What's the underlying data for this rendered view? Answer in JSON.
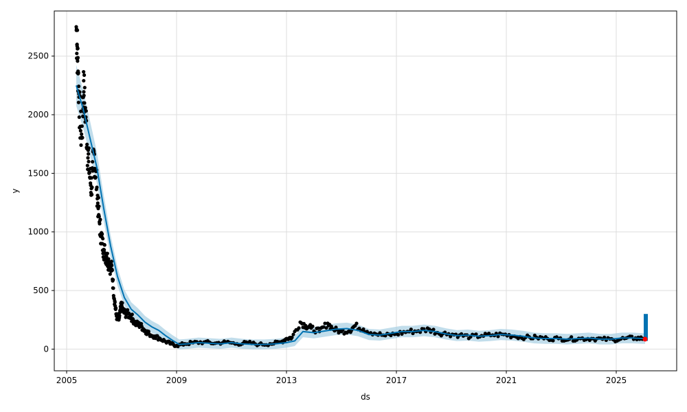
{
  "chart_data": {
    "type": "line",
    "title": "",
    "xlabel": "ds",
    "ylabel": "y",
    "xlim": [
      2004.55,
      2027.2
    ],
    "ylim": [
      -185,
      2885
    ],
    "x_ticks": [
      2005,
      2009,
      2013,
      2017,
      2021,
      2025
    ],
    "x_tick_labels": [
      "2005",
      "2009",
      "2013",
      "2017",
      "2021",
      "2025"
    ],
    "y_ticks": [
      0,
      500,
      1000,
      1500,
      2000,
      2500
    ],
    "y_tick_labels": [
      "0",
      "500",
      "1000",
      "1500",
      "2000",
      "2500"
    ],
    "grid": true,
    "colors": {
      "observed": "#000000",
      "forecast": "#0072B2",
      "interval": "#A6CEE3",
      "future_band": "#0072B2",
      "last_point": "#FF0000"
    },
    "series": [
      {
        "role": "forecast",
        "x": [
          2005.35,
          2005.6,
          2005.85,
          2006.1,
          2006.35,
          2006.6,
          2006.85,
          2007.1,
          2007.35,
          2007.6,
          2007.85,
          2008.1,
          2008.35,
          2008.6,
          2008.85,
          2009.1,
          2009.4,
          2009.8,
          2010.2,
          2010.6,
          2011.0,
          2011.4,
          2011.8,
          2012.2,
          2012.6,
          2013.0,
          2013.3,
          2013.6,
          2014.0,
          2014.4,
          2014.8,
          2015.2,
          2015.6,
          2016.0,
          2016.4,
          2016.8,
          2017.2,
          2017.6,
          2018.0,
          2018.4,
          2018.8,
          2019.2,
          2019.6,
          2020.0,
          2020.4,
          2020.8,
          2021.2,
          2021.6,
          2022.0,
          2022.4,
          2022.8,
          2023.2,
          2023.6,
          2024.0,
          2024.4,
          2024.8,
          2025.2,
          2025.6,
          2026.0,
          2026.05
        ],
        "y": [
          2250,
          2050,
          1800,
          1550,
          1200,
          880,
          620,
          440,
          340,
          290,
          230,
          190,
          160,
          115,
          75,
          40,
          45,
          55,
          50,
          45,
          55,
          45,
          40,
          40,
          45,
          55,
          70,
          150,
          140,
          155,
          170,
          175,
          160,
          125,
          120,
          135,
          150,
          150,
          160,
          150,
          130,
          115,
          120,
          110,
          115,
          125,
          120,
          110,
          95,
          90,
          90,
          85,
          90,
          95,
          85,
          85,
          95,
          95,
          90,
          90
        ]
      },
      {
        "role": "observed",
        "x": [
          2005.35,
          2005.38,
          2005.4,
          2005.42,
          2005.45,
          2005.5,
          2005.55,
          2005.6,
          2005.62,
          2005.65,
          2005.7,
          2005.75,
          2005.8,
          2005.85,
          2005.9,
          2005.95,
          2006.0,
          2006.05,
          2006.1,
          2006.15,
          2006.2,
          2006.25,
          2006.3,
          2006.35,
          2006.4,
          2006.45,
          2006.5,
          2006.55,
          2006.6,
          2006.65,
          2006.7,
          2006.75,
          2006.8,
          2006.85,
          2006.9,
          2006.95,
          2007.0,
          2007.05,
          2007.1,
          2007.2,
          2007.3,
          2007.4,
          2007.5,
          2007.6,
          2007.7,
          2007.8,
          2007.9,
          2008.0,
          2008.2,
          2008.4,
          2008.6,
          2008.8,
          2009.0,
          2009.3,
          2009.6,
          2010.0,
          2010.4,
          2010.8,
          2011.2,
          2011.6,
          2012.0,
          2012.4,
          2012.8,
          2013.0,
          2013.2,
          2013.5,
          2013.7,
          2013.9,
          2014.2,
          2014.5,
          2014.7,
          2015.0,
          2015.3,
          2015.5,
          2015.8,
          2016.2,
          2016.6,
          2017.0,
          2017.4,
          2017.8,
          2018.2,
          2018.5,
          2018.9,
          2019.3,
          2019.7,
          2020.1,
          2020.5,
          2020.9,
          2021.3,
          2021.7,
          2022.1,
          2022.5,
          2022.9,
          2023.3,
          2023.7,
          2024.1,
          2024.5,
          2024.9,
          2025.3,
          2025.7,
          2026.0
        ],
        "y": [
          2750,
          2600,
          2480,
          2350,
          2150,
          1900,
          1800,
          2050,
          2290,
          2100,
          1980,
          1720,
          1600,
          1460,
          1370,
          1520,
          1670,
          1520,
          1380,
          1200,
          1070,
          980,
          900,
          850,
          820,
          790,
          760,
          740,
          700,
          680,
          520,
          410,
          300,
          260,
          250,
          320,
          380,
          330,
          310,
          300,
          290,
          260,
          220,
          210,
          200,
          170,
          150,
          130,
          110,
          90,
          65,
          45,
          30,
          45,
          55,
          60,
          50,
          60,
          45,
          55,
          40,
          45,
          60,
          90,
          100,
          230,
          200,
          180,
          150,
          220,
          170,
          150,
          160,
          200,
          170,
          135,
          115,
          130,
          150,
          155,
          170,
          140,
          130,
          120,
          105,
          115,
          120,
          125,
          110,
          100,
          100,
          90,
          90,
          85,
          90,
          90,
          85,
          80,
          90,
          95,
          90
        ]
      }
    ],
    "future_band": {
      "x_start": 2026.0,
      "x_end": 2026.05,
      "y_min": 70,
      "y_max": 300
    },
    "last_point": {
      "x": 2026.05,
      "y": 85
    }
  }
}
